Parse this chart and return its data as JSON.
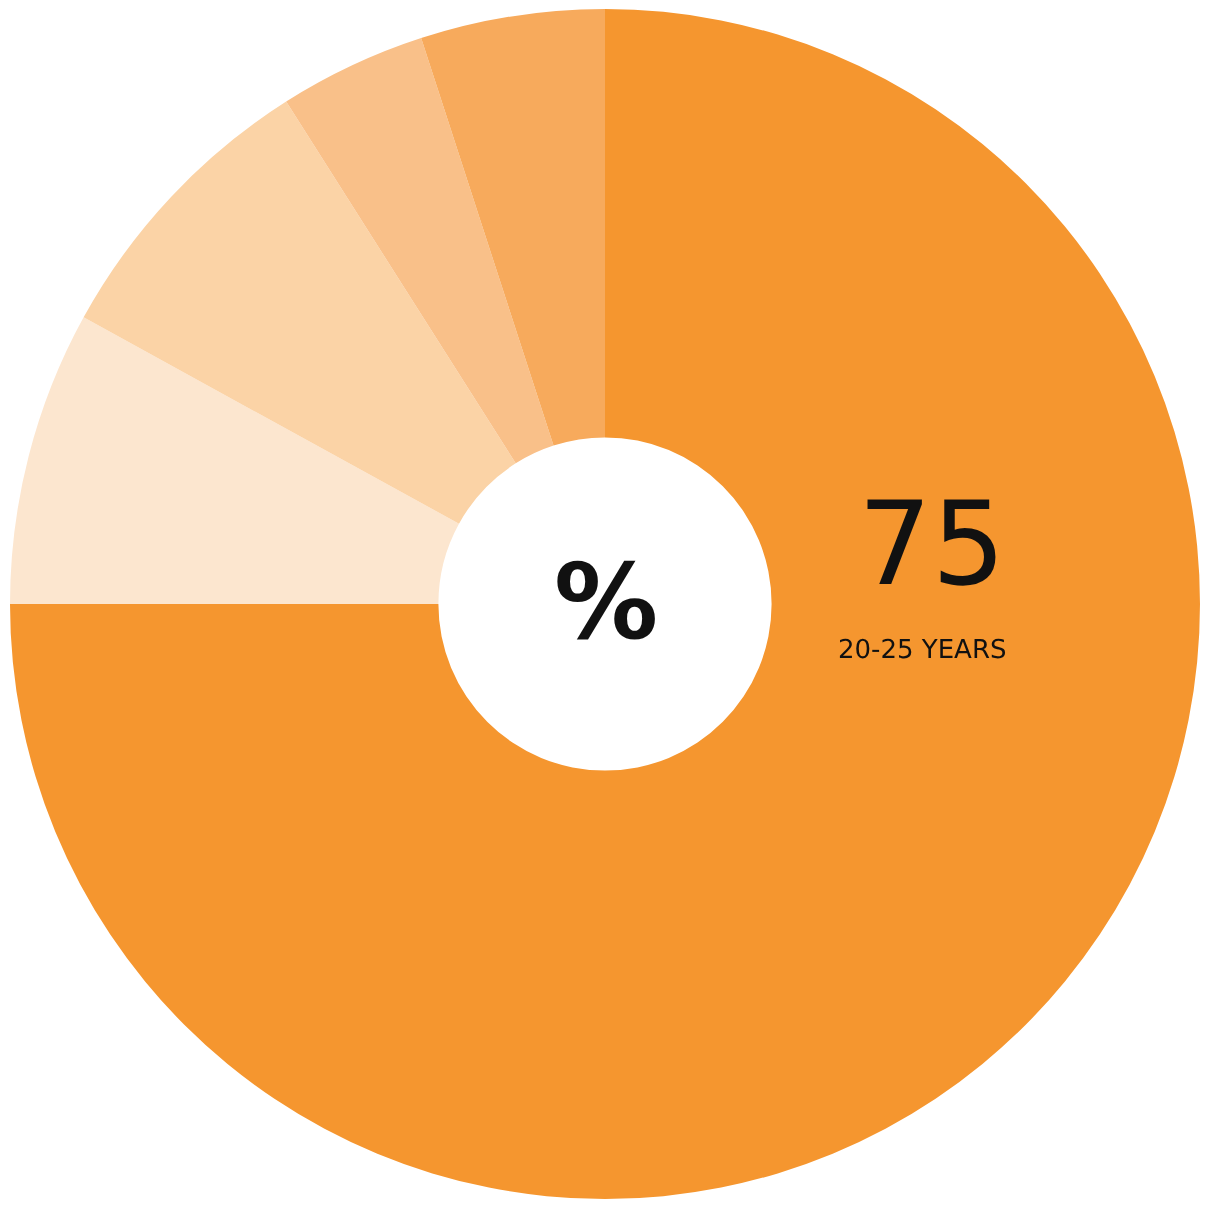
{
  "chart_data": {
    "type": "donut",
    "categories": [
      "20-25 YEARS",
      null,
      null,
      null,
      null
    ],
    "values": [
      75,
      8,
      8,
      4,
      5
    ],
    "colors": [
      "#f5962f",
      "#fce6cf",
      "#fbd3a6",
      "#f9c089",
      "#f7aa5c"
    ],
    "value_labels": [
      "75",
      null,
      null,
      null,
      null
    ],
    "annotations": [
      "%"
    ],
    "legend": false
  }
}
